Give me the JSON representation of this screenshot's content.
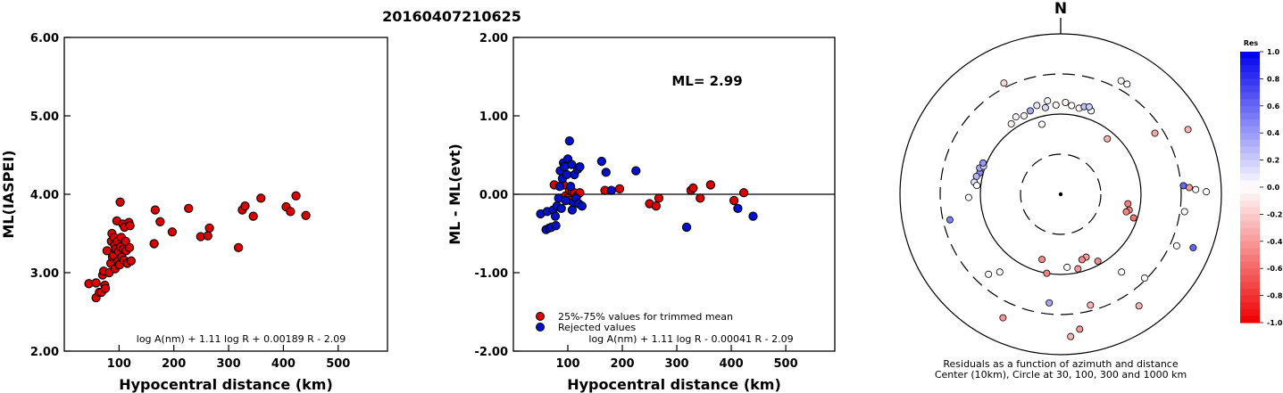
{
  "figure_title": "20160407210625",
  "chart_data": [
    {
      "type": "scatter",
      "id": "ml-vs-distance",
      "xlabel": "Hypocentral distance (km)",
      "ylabel": "ML(IASPEI)",
      "xlim": [
        0,
        590
      ],
      "ylim": [
        2.0,
        6.0
      ],
      "xticks": [
        "100",
        "200",
        "300",
        "400",
        "500"
      ],
      "yticks": [
        "2.00",
        "3.00",
        "4.00",
        "5.00",
        "6.00"
      ],
      "formula": "log A(nm) + 1.11 log R + 0.00189 R - 2.09",
      "point_color": "#dd0000",
      "series": [
        {
          "points": [
            [
              45,
              2.86
            ],
            [
              58,
              2.87
            ],
            [
              58,
              2.68
            ],
            [
              64,
              2.75
            ],
            [
              68,
              2.75
            ],
            [
              70,
              2.97
            ],
            [
              72,
              3.02
            ],
            [
              74,
              2.84
            ],
            [
              75,
              2.8
            ],
            [
              78,
              3.28
            ],
            [
              82,
              3.0
            ],
            [
              85,
              3.12
            ],
            [
              86,
              3.4
            ],
            [
              87,
              3.5
            ],
            [
              88,
              3.2
            ],
            [
              90,
              3.22
            ],
            [
              91,
              3.45
            ],
            [
              92,
              3.35
            ],
            [
              93,
              3.05
            ],
            [
              94,
              3.3
            ],
            [
              96,
              3.66
            ],
            [
              97,
              3.4
            ],
            [
              98,
              3.15
            ],
            [
              99,
              3.27
            ],
            [
              100,
              3.1
            ],
            [
              101,
              3.1
            ],
            [
              102,
              3.9
            ],
            [
              103,
              3.33
            ],
            [
              104,
              3.45
            ],
            [
              105,
              3.2
            ],
            [
              107,
              3.62
            ],
            [
              108,
              3.3
            ],
            [
              109,
              3.16
            ],
            [
              110,
              3.58
            ],
            [
              112,
              3.4
            ],
            [
              113,
              3.28
            ],
            [
              115,
              3.12
            ],
            [
              118,
              3.64
            ],
            [
              119,
              3.32
            ],
            [
              120,
              3.6
            ],
            [
              122,
              3.15
            ],
            [
              164,
              3.37
            ],
            [
              166,
              3.8
            ],
            [
              175,
              3.65
            ],
            [
              197,
              3.52
            ],
            [
              227,
              3.82
            ],
            [
              249,
              3.46
            ],
            [
              262,
              3.47
            ],
            [
              265,
              3.57
            ],
            [
              318,
              3.32
            ],
            [
              325,
              3.8
            ],
            [
              330,
              3.85
            ],
            [
              345,
              3.72
            ],
            [
              359,
              3.95
            ],
            [
              405,
              3.84
            ],
            [
              413,
              3.78
            ],
            [
              423,
              3.98
            ],
            [
              441,
              3.73
            ]
          ]
        }
      ]
    },
    {
      "type": "scatter",
      "id": "residual-vs-distance",
      "xlabel": "Hypocentral distance (km)",
      "ylabel": "ML - ML(evt)",
      "xlim": [
        0,
        590
      ],
      "ylim": [
        -2.0,
        2.0
      ],
      "xticks": [
        "100",
        "200",
        "300",
        "400",
        "500"
      ],
      "yticks": [
        "-2.00",
        "-1.00",
        "0.00",
        "1.00",
        "2.00"
      ],
      "annotation": "ML= 2.99",
      "formula": "log A(nm) + 1.11 log R - 0.00041 R - 2.09",
      "reference_line": 0,
      "series": [
        {
          "name": "25%-75% values for trimmed mean",
          "color": "#dd0000",
          "points": [
            [
              75,
              0.12
            ],
            [
              92,
              0.12
            ],
            [
              96,
              -0.02
            ],
            [
              100,
              -0.05
            ],
            [
              103,
              0.05
            ],
            [
              105,
              -0.08
            ],
            [
              108,
              0.03
            ],
            [
              112,
              0.02
            ],
            [
              117,
              -0.02
            ],
            [
              122,
              0.02
            ],
            [
              168,
              0.05
            ],
            [
              195,
              0.07
            ],
            [
              250,
              -0.12
            ],
            [
              262,
              -0.15
            ],
            [
              267,
              -0.05
            ],
            [
              326,
              0.05
            ],
            [
              330,
              0.08
            ],
            [
              343,
              -0.05
            ],
            [
              362,
              0.12
            ],
            [
              405,
              -0.08
            ],
            [
              423,
              0.02
            ]
          ]
        },
        {
          "name": "Rejected values",
          "color": "#0011cc",
          "points": [
            [
              50,
              -0.25
            ],
            [
              60,
              -0.45
            ],
            [
              62,
              -0.22
            ],
            [
              66,
              -0.43
            ],
            [
              70,
              -0.42
            ],
            [
              73,
              -0.2
            ],
            [
              77,
              -0.28
            ],
            [
              78,
              -0.4
            ],
            [
              80,
              -0.15
            ],
            [
              83,
              -0.05
            ],
            [
              85,
              0.1
            ],
            [
              86,
              0.3
            ],
            [
              88,
              -0.18
            ],
            [
              90,
              0.2
            ],
            [
              92,
              0.4
            ],
            [
              94,
              0.35
            ],
            [
              96,
              -0.08
            ],
            [
              98,
              0.25
            ],
            [
              100,
              0.45
            ],
            [
              103,
              0.68
            ],
            [
              105,
              0.1
            ],
            [
              107,
              0.38
            ],
            [
              108,
              -0.2
            ],
            [
              110,
              -0.1
            ],
            [
              112,
              0.25
            ],
            [
              115,
              -0.05
            ],
            [
              118,
              0.32
            ],
            [
              120,
              -0.12
            ],
            [
              122,
              0.35
            ],
            [
              126,
              -0.15
            ],
            [
              162,
              0.42
            ],
            [
              170,
              0.28
            ],
            [
              180,
              0.05
            ],
            [
              225,
              0.3
            ],
            [
              318,
              -0.42
            ],
            [
              412,
              -0.18
            ],
            [
              440,
              -0.28
            ]
          ]
        }
      ]
    },
    {
      "type": "scatter",
      "id": "azimuth-residual-map",
      "north_label": "N",
      "caption_lines": [
        "Residuals as a function of azimuth and distance",
        "Center (10km), Circle at 30, 100, 300 and 1000 km"
      ],
      "rings_km": [
        30,
        100,
        300,
        1000
      ],
      "colorbar": {
        "title": "Res",
        "ticks": [
          "1.0",
          "0.8",
          "0.6",
          "0.4",
          "0.2",
          "0.0",
          "-0.2",
          "-0.4",
          "-0.6",
          "-0.8",
          "-1.0"
        ],
        "max_color": "#0000ee",
        "mid_color": "#ffffff",
        "min_color": "#ee0000"
      },
      "stations": [
        {
          "az": 357,
          "dist_km": 130,
          "res": -0.05
        },
        {
          "az": 7,
          "dist_km": 130,
          "res": 0.0
        },
        {
          "az": 12,
          "dist_km": 125,
          "res": -0.05
        },
        {
          "az": 350,
          "dist_km": 125,
          "res": 0.15
        },
        {
          "az": 345,
          "dist_km": 140,
          "res": 0.1
        },
        {
          "az": 340,
          "dist_km": 128,
          "res": 0.35
        },
        {
          "az": 335,
          "dist_km": 120,
          "res": -0.05
        },
        {
          "az": 330,
          "dist_km": 130,
          "res": 0.05
        },
        {
          "az": 325,
          "dist_km": 118,
          "res": -0.05
        },
        {
          "az": 3,
          "dist_km": 140,
          "res": -0.03
        },
        {
          "az": 15,
          "dist_km": 135,
          "res": 0.25
        },
        {
          "az": 20,
          "dist_km": 128,
          "res": 0.0
        },
        {
          "az": 18,
          "dist_km": 140,
          "res": 0.2
        },
        {
          "az": 352,
          "dist_km": 150,
          "res": 0.05
        },
        {
          "az": 28,
          "dist_km": 400,
          "res": -0.05
        },
        {
          "az": 31,
          "dist_km": 400,
          "res": 0.0
        },
        {
          "az": 333,
          "dist_km": 360,
          "res": -0.15
        },
        {
          "az": 285,
          "dist_km": 110,
          "res": 0.45
        },
        {
          "az": 288,
          "dist_km": 115,
          "res": 0.35
        },
        {
          "az": 290,
          "dist_km": 105,
          "res": 0.2
        },
        {
          "az": 282,
          "dist_km": 118,
          "res": 0.3
        },
        {
          "az": 292,
          "dist_km": 110,
          "res": 0.4
        },
        {
          "az": 278,
          "dist_km": 122,
          "res": 0.1
        },
        {
          "az": 276,
          "dist_km": 112,
          "res": 0.0
        },
        {
          "az": 268,
          "dist_km": 140,
          "res": 0.0
        },
        {
          "az": 257,
          "dist_km": 260,
          "res": 0.5
        },
        {
          "az": 345,
          "dist_km": 80,
          "res": 0.0
        },
        {
          "az": 40,
          "dist_km": 80,
          "res": -0.3
        },
        {
          "az": 57,
          "dist_km": 250,
          "res": -0.35
        },
        {
          "az": 63,
          "dist_km": 600,
          "res": -0.3
        },
        {
          "az": 87,
          "dist_km": 400,
          "res": -0.4
        },
        {
          "az": 98,
          "dist_km": 70,
          "res": -0.5
        },
        {
          "az": 103,
          "dist_km": 75,
          "res": -0.45
        },
        {
          "az": 105,
          "dist_km": 70,
          "res": -0.5
        },
        {
          "az": 108,
          "dist_km": 90,
          "res": -0.55
        },
        {
          "az": 86,
          "dist_km": 340,
          "res": 0.6
        },
        {
          "az": 88,
          "dist_km": 480,
          "res": 0.0
        },
        {
          "az": 89,
          "dist_km": 650,
          "res": 0.0
        },
        {
          "az": 98,
          "dist_km": 360,
          "res": 0.0
        },
        {
          "az": 114,
          "dist_km": 380,
          "res": 0.0
        },
        {
          "az": 112,
          "dist_km": 600,
          "res": 0.6
        },
        {
          "az": 142,
          "dist_km": 170,
          "res": 0.0
        },
        {
          "az": 151,
          "dist_km": 90,
          "res": -0.45
        },
        {
          "az": 158,
          "dist_km": 70,
          "res": -0.4
        },
        {
          "az": 162,
          "dist_km": 72,
          "res": -0.45
        },
        {
          "az": 167,
          "dist_km": 90,
          "res": -0.4
        },
        {
          "az": 175,
          "dist_km": 82,
          "res": 0.0
        },
        {
          "az": 190,
          "dist_km": 100,
          "res": -0.5
        },
        {
          "az": 196,
          "dist_km": 70,
          "res": -0.45
        },
        {
          "az": 165,
          "dist_km": 270,
          "res": -0.3
        },
        {
          "az": 172,
          "dist_km": 500,
          "res": -0.4
        },
        {
          "az": 176,
          "dist_km": 600,
          "res": -0.3
        },
        {
          "az": 186,
          "dist_km": 230,
          "res": 0.35
        },
        {
          "az": 145,
          "dist_km": 500,
          "res": -0.3
        },
        {
          "az": 135,
          "dist_km": 300,
          "res": 0.0
        },
        {
          "az": 222,
          "dist_km": 220,
          "res": 0.0
        },
        {
          "az": 218,
          "dist_km": 170,
          "res": 0.0
        },
        {
          "az": 205,
          "dist_km": 500,
          "res": -0.4
        }
      ]
    }
  ]
}
